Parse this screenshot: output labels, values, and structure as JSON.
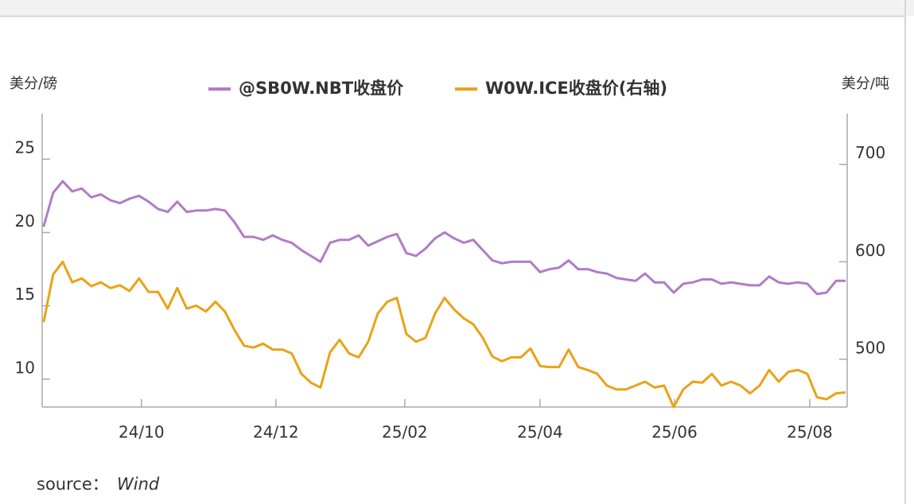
{
  "chart_data": {
    "type": "line",
    "y_label": "美分/磅",
    "y2_label": "美分/吨",
    "source_label": "source：",
    "source": "Wind",
    "legend": "top",
    "xlim": [
      -0.15,
      84.17
    ],
    "xticks": [
      {
        "value": 10.25,
        "label": "24/10"
      },
      {
        "value": 24.33,
        "label": "24/12"
      },
      {
        "value": 37.83,
        "label": "25/02"
      },
      {
        "value": 52,
        "label": "25/04"
      },
      {
        "value": 66.08,
        "label": "25/06"
      },
      {
        "value": 80.25,
        "label": "25/08"
      }
    ],
    "ylim": [
      8.1,
      28.1
    ],
    "yticks": [
      10,
      15,
      20,
      25
    ],
    "y2lim": [
      451,
      752
    ],
    "y2ticks": [
      500,
      600,
      700
    ],
    "series": [
      {
        "name": "@SB0W.NBT收盘价",
        "color": "#b07cc6",
        "axis": "y",
        "values": [
          20.4,
          22.7,
          23.5,
          22.8,
          23.0,
          22.4,
          22.6,
          22.2,
          22.0,
          22.3,
          22.5,
          22.1,
          21.6,
          21.4,
          22.1,
          21.4,
          21.5,
          21.5,
          21.6,
          21.5,
          20.7,
          19.7,
          19.7,
          19.5,
          19.8,
          19.5,
          19.3,
          18.8,
          18.4,
          18.0,
          19.3,
          19.5,
          19.5,
          19.8,
          19.1,
          19.4,
          19.7,
          19.9,
          18.6,
          18.4,
          18.9,
          19.6,
          20.0,
          19.6,
          19.3,
          19.5,
          18.8,
          18.1,
          17.9,
          18.0,
          18.0,
          18.0,
          17.3,
          17.5,
          17.6,
          18.1,
          17.5,
          17.5,
          17.3,
          17.2,
          16.9,
          16.8,
          16.7,
          17.2,
          16.6,
          16.6,
          15.9,
          16.5,
          16.6,
          16.8,
          16.8,
          16.5,
          16.6,
          16.5,
          16.4,
          16.4,
          17.0,
          16.6,
          16.5,
          16.6,
          16.5,
          15.8,
          15.9,
          16.7,
          16.7
        ]
      },
      {
        "name": "W0W.ICE收盘价(右轴)",
        "color": "#e8a317",
        "axis": "y2",
        "values": [
          538,
          587,
          600,
          579,
          583,
          575,
          579,
          573,
          576,
          570,
          583,
          569,
          569,
          552,
          573,
          552,
          555,
          549,
          559,
          549,
          530,
          514,
          512,
          516,
          510,
          510,
          506,
          485,
          476,
          471,
          507,
          520,
          506,
          502,
          518,
          547,
          559,
          563,
          526,
          518,
          522,
          547,
          563,
          551,
          542,
          536,
          522,
          503,
          498,
          502,
          502,
          511,
          493,
          492,
          492,
          510,
          492,
          489,
          485,
          473,
          469,
          469,
          473,
          477,
          471,
          473,
          451,
          469,
          477,
          476,
          485,
          473,
          477,
          473,
          465,
          473,
          489,
          477,
          487,
          489,
          485,
          461,
          459,
          465,
          466
        ]
      }
    ]
  }
}
